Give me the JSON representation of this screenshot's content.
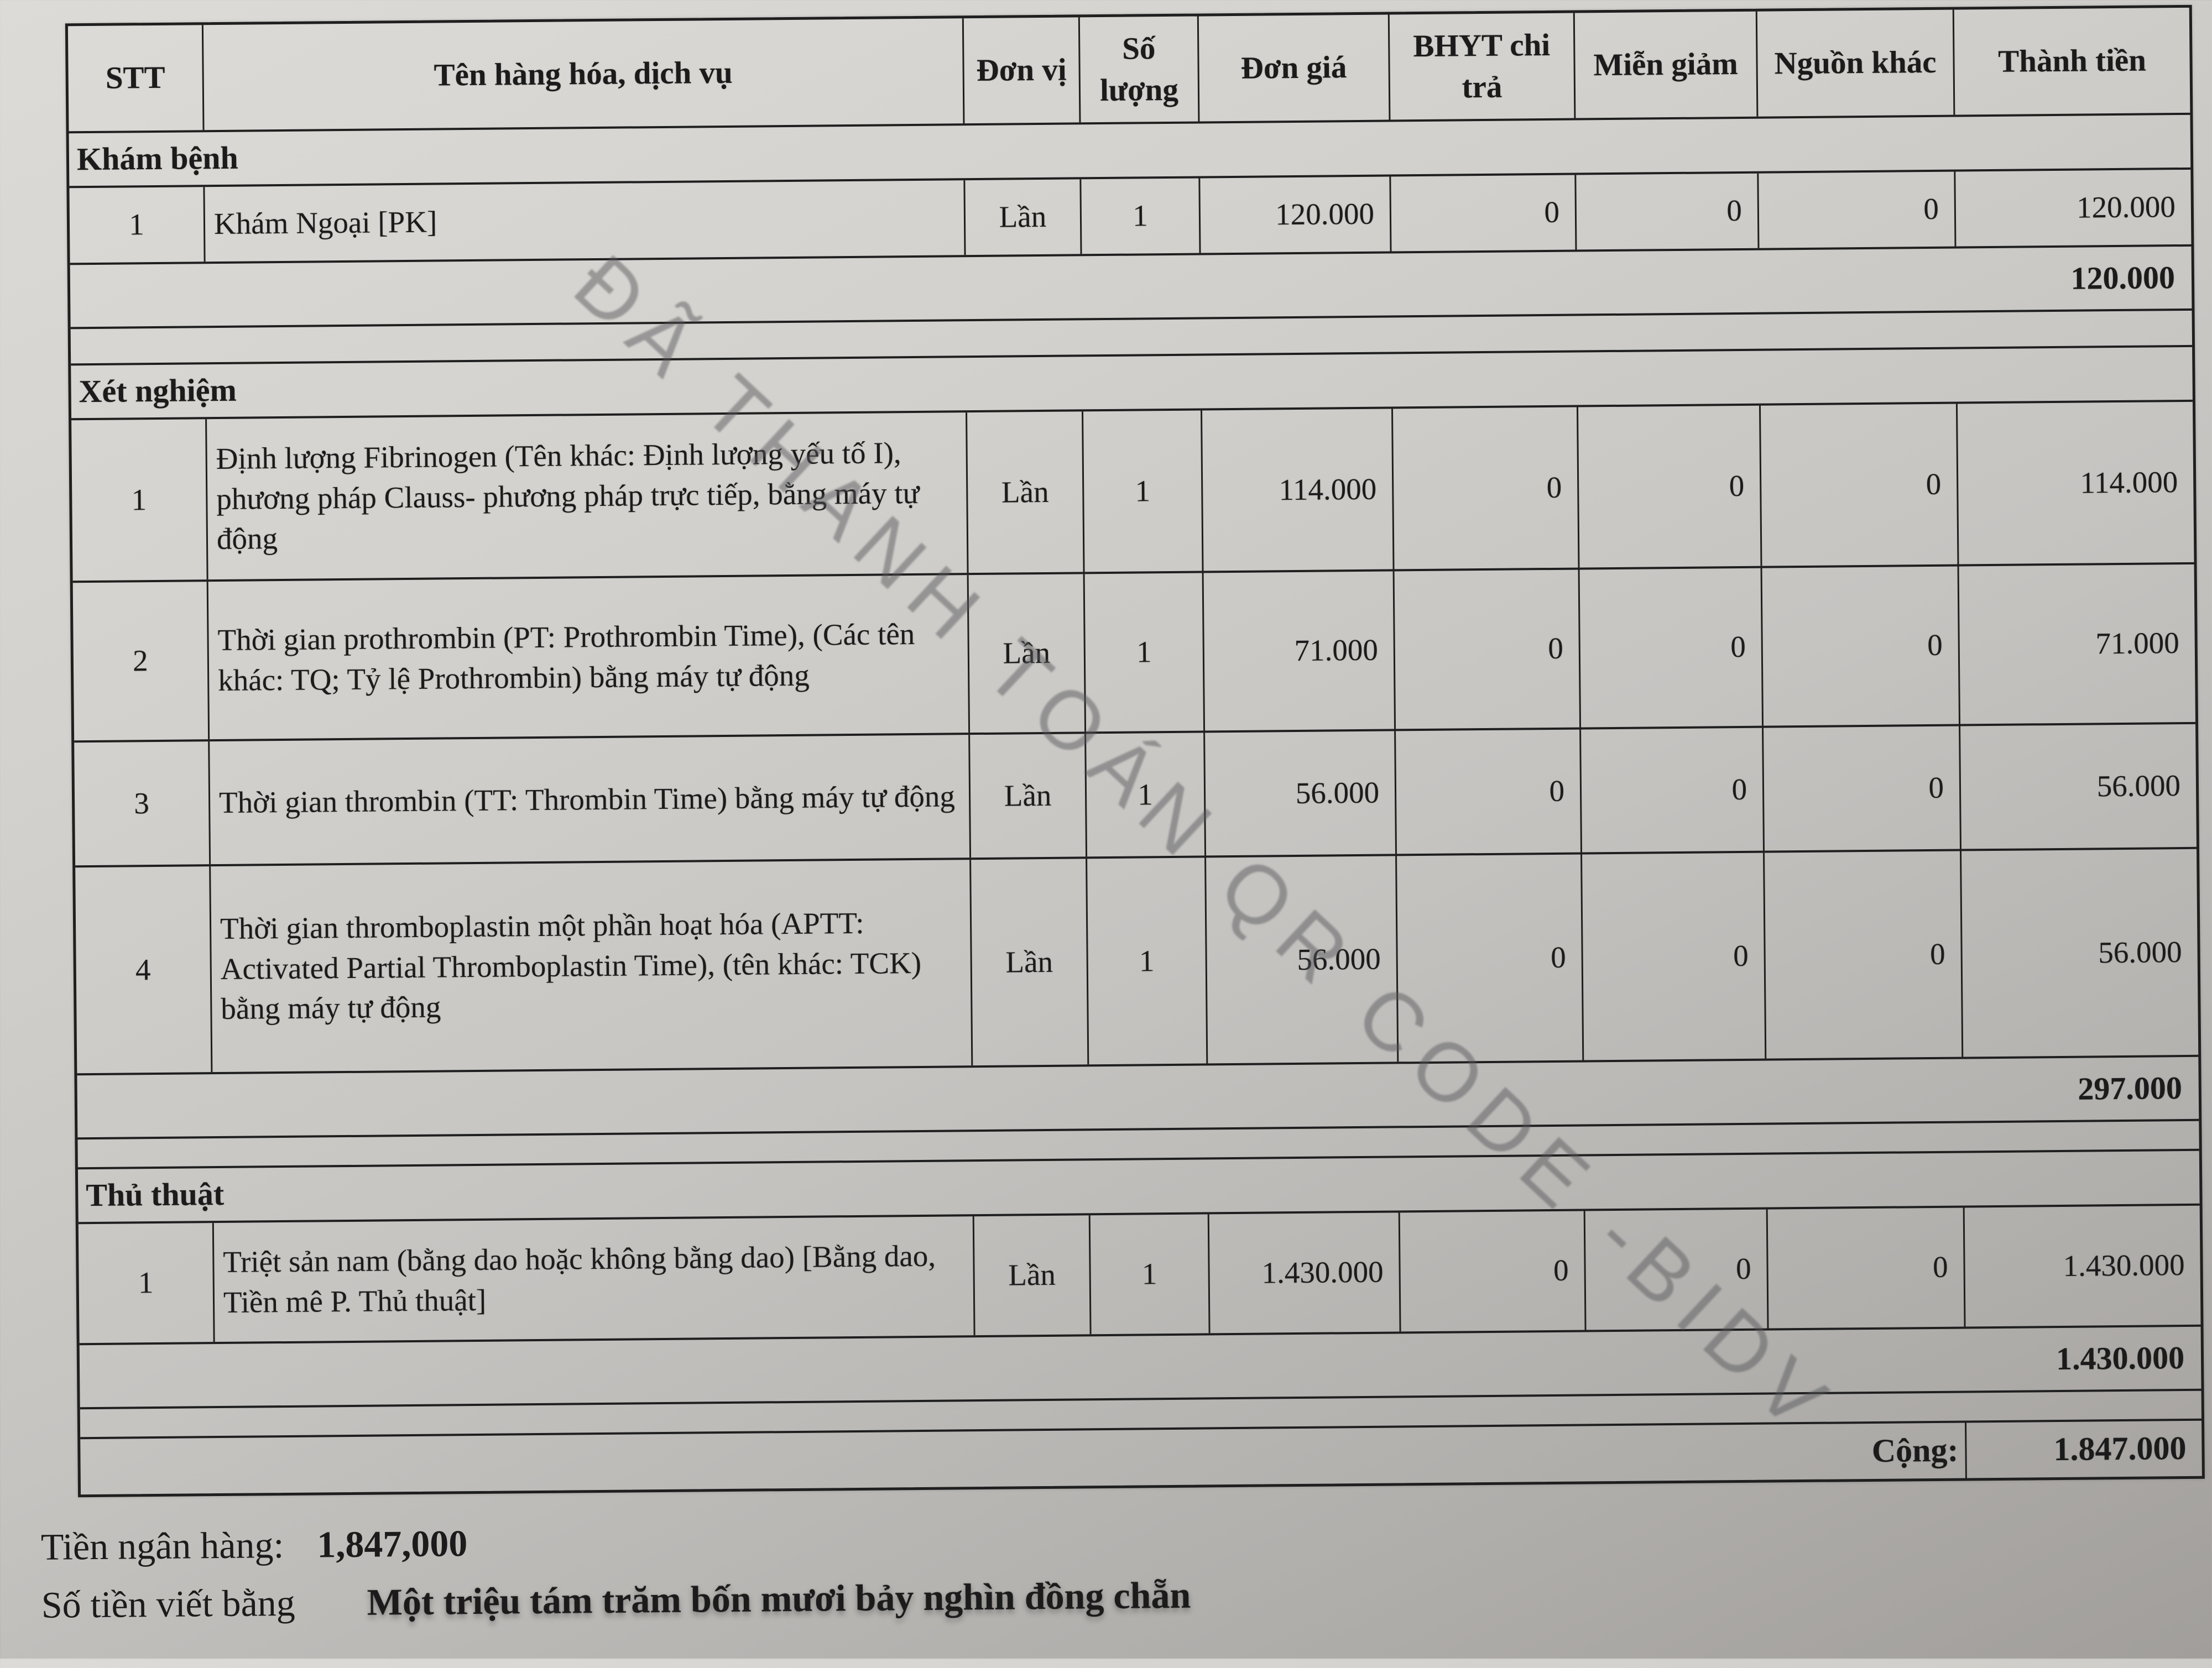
{
  "watermark": "ĐÃ THANH TOÁN QR CODE -BIDV",
  "table": {
    "headers": {
      "stt": "STT",
      "name": "Tên hàng hóa, dịch vụ",
      "unit": "Đơn vị",
      "qty": "Số lượng",
      "price": "Đơn giá",
      "bhyt": "BHYT chi trả",
      "mien": "Miễn giảm",
      "khac": "Nguồn khác",
      "total": "Thành tiền"
    },
    "sections": [
      {
        "title": "Khám bệnh",
        "rows": [
          {
            "stt": "1",
            "name": "Khám Ngoại [PK]",
            "unit": "Lần",
            "qty": "1",
            "price": "120.000",
            "bhyt": "0",
            "mien": "0",
            "khac": "0",
            "total": "120.000"
          }
        ],
        "subtotal": "120.000"
      },
      {
        "title": "Xét nghiệm",
        "rows": [
          {
            "stt": "1",
            "name": "Định lượng Fibrinogen (Tên khác: Định lượng yếu tố I), phương pháp Clauss- phương pháp trực tiếp, bằng máy tự động",
            "unit": "Lần",
            "qty": "1",
            "price": "114.000",
            "bhyt": "0",
            "mien": "0",
            "khac": "0",
            "total": "114.000"
          },
          {
            "stt": "2",
            "name": "Thời gian prothrombin (PT: Prothrombin Time), (Các tên khác: TQ; Tỷ lệ Prothrombin) bằng máy tự động",
            "unit": "Lần",
            "qty": "1",
            "price": "71.000",
            "bhyt": "0",
            "mien": "0",
            "khac": "0",
            "total": "71.000"
          },
          {
            "stt": "3",
            "name": "Thời gian thrombin (TT: Thrombin Time) bằng máy tự động",
            "unit": "Lần",
            "qty": "1",
            "price": "56.000",
            "bhyt": "0",
            "mien": "0",
            "khac": "0",
            "total": "56.000"
          },
          {
            "stt": "4",
            "name": "Thời gian thromboplastin một phần hoạt hóa (APTT: Activated Partial Thromboplastin Time), (tên khác: TCK) bằng máy tự động",
            "unit": "Lần",
            "qty": "1",
            "price": "56.000",
            "bhyt": "0",
            "mien": "0",
            "khac": "0",
            "total": "56.000"
          }
        ],
        "subtotal": "297.000"
      },
      {
        "title": "Thủ thuật",
        "rows": [
          {
            "stt": "1",
            "name": "Triệt sản nam (bằng dao hoặc không bằng dao) [Bằng dao, Tiền mê P. Thủ thuật]",
            "unit": "Lần",
            "qty": "1",
            "price": "1.430.000",
            "bhyt": "0",
            "mien": "0",
            "khac": "0",
            "total": "1.430.000"
          }
        ],
        "subtotal": "1.430.000"
      }
    ],
    "grand_total_label": "Cộng:",
    "grand_total": "1.847.000"
  },
  "footer": {
    "bank_label": "Tiền ngân hàng:",
    "bank_amount": "1,847,000",
    "words_label": "Số tiền viết bằng",
    "words_value": "Một triệu tám trăm bốn mươi bảy nghìn đồng chẵn"
  }
}
